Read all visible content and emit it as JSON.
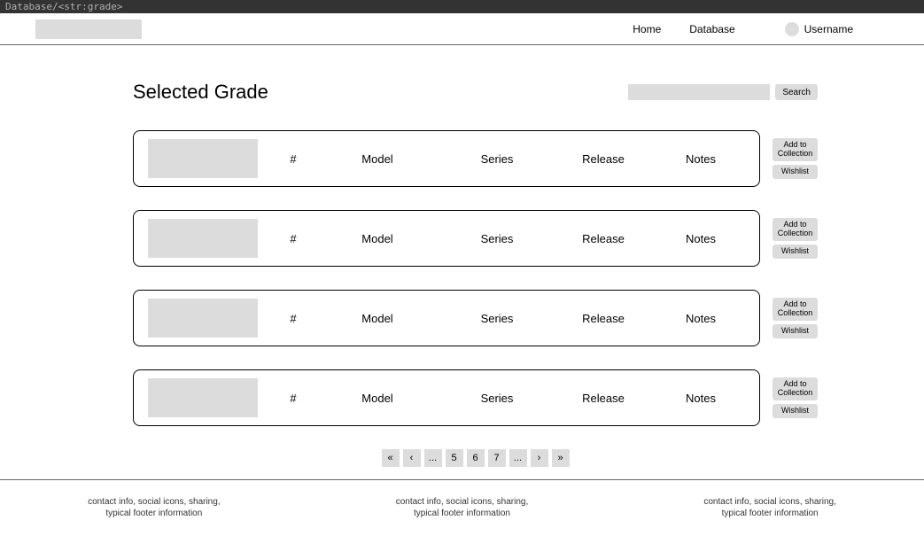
{
  "urlbar": "Database/<str:grade>",
  "nav": {
    "home": "Home",
    "database": "Database",
    "username": "Username"
  },
  "page_title": "Selected Grade",
  "search": {
    "placeholder": "",
    "button": "Search"
  },
  "columns": {
    "num": "#",
    "model": "Model",
    "series": "Series",
    "release": "Release",
    "notes": "Notes"
  },
  "actions": {
    "add": "Add to Collection",
    "wishlist": "Wishlist"
  },
  "rows": [
    {
      "num": "#",
      "model": "Model",
      "series": "Series",
      "release": "Release",
      "notes": "Notes"
    },
    {
      "num": "#",
      "model": "Model",
      "series": "Series",
      "release": "Release",
      "notes": "Notes"
    },
    {
      "num": "#",
      "model": "Model",
      "series": "Series",
      "release": "Release",
      "notes": "Notes"
    },
    {
      "num": "#",
      "model": "Model",
      "series": "Series",
      "release": "Release",
      "notes": "Notes"
    }
  ],
  "pagination": {
    "first": "«",
    "prev": "‹",
    "ellipsis_l": "...",
    "p5": "5",
    "p6": "6",
    "p7": "7",
    "ellipsis_r": "...",
    "next": "›",
    "last": "»"
  },
  "footer": {
    "col1_l1": "contact info, social icons, sharing,",
    "col1_l2": "typical footer information",
    "col2_l1": "contact info, social icons, sharing,",
    "col2_l2": "typical footer information",
    "col3_l1": "contact info, social icons, sharing,",
    "col3_l2": "typical footer information"
  }
}
